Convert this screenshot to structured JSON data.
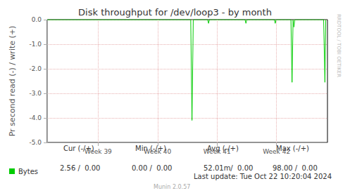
{
  "chart_data": {
    "type": "line",
    "title": "Disk throughput for /dev/loop3 - by month",
    "y_label": "Pr second read (-) / write (+)",
    "x": [
      0,
      16.9,
      17.05,
      17.2,
      18.9,
      19.0,
      19.1,
      23.3,
      23.4,
      23.5,
      26.75,
      26.85,
      26.95,
      28.7,
      28.83,
      28.95,
      29.05,
      29.15,
      32.55,
      32.7,
      32.8
    ],
    "series": [
      {
        "name": "Bytes",
        "color": "#00cc00",
        "values": [
          0,
          0,
          -4.1,
          0,
          0,
          -0.15,
          0,
          0,
          -0.15,
          0,
          0,
          -0.15,
          0,
          0,
          -2.55,
          0,
          -0.3,
          0,
          0,
          -2.55,
          0
        ]
      }
    ],
    "xlim": [
      0,
      33
    ],
    "xticks": [
      {
        "value": 6,
        "label": "Week 39"
      },
      {
        "value": 13,
        "label": "Week 40"
      },
      {
        "value": 20,
        "label": "Week 41"
      },
      {
        "value": 27,
        "label": "Week 42"
      }
    ],
    "ylim": [
      -5,
      0
    ],
    "yticks": [
      {
        "value": -5,
        "label": "-5.0"
      },
      {
        "value": -4,
        "label": "-4.0"
      },
      {
        "value": -3,
        "label": "-3.0"
      },
      {
        "value": -2,
        "label": "-2.0"
      },
      {
        "value": -1,
        "label": "-1.0"
      },
      {
        "value": 0,
        "label": "0.0"
      }
    ],
    "grid": true,
    "legend": "bottom left",
    "stats": {
      "columns": [
        "Cur (-/+)",
        "Min (-/+)",
        "Avg (-/+)",
        "Max (-/+)"
      ],
      "values": [
        "2.56 /  0.00",
        "0.00 /  0.00",
        "52.01m/  0.00",
        "98.00 /  0.00"
      ]
    },
    "last_update": "Last update: Tue Oct 22 10:20:04 2024",
    "footer": "Munin 2.0.57",
    "side_text": "RRDTOOL / TOBI OETIKER"
  }
}
